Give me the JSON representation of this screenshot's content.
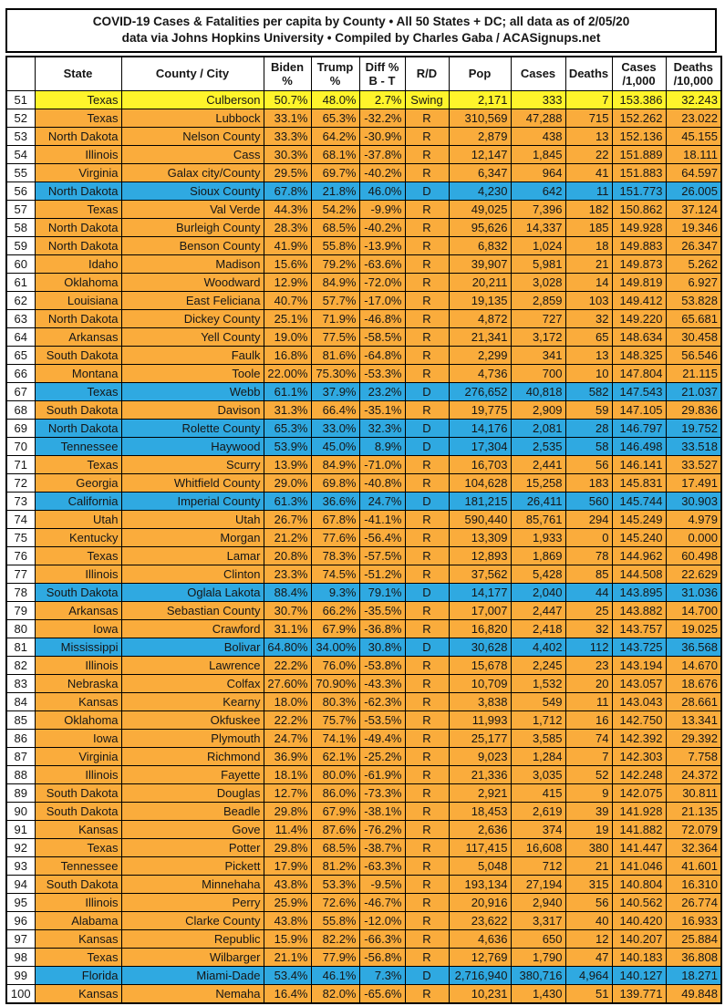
{
  "chart_data": {
    "type": "table",
    "title": "COVID-19 Cases & Fatalities per capita by County • All 50 States + DC; all data as of 2/05/20",
    "subtitle": "data via Johns Hopkins University • Compiled by Charles Gaba / ACASignups.net",
    "columns": [
      {
        "key": "rank",
        "lines": [
          ""
        ]
      },
      {
        "key": "state",
        "lines": [
          "State"
        ]
      },
      {
        "key": "county",
        "lines": [
          "County / City"
        ]
      },
      {
        "key": "biden",
        "lines": [
          "Biden",
          "%"
        ]
      },
      {
        "key": "trump",
        "lines": [
          "Trump",
          "%"
        ]
      },
      {
        "key": "diff",
        "lines": [
          "Diff %",
          "B - T"
        ]
      },
      {
        "key": "rd",
        "lines": [
          "R/D"
        ]
      },
      {
        "key": "pop",
        "lines": [
          "Pop"
        ]
      },
      {
        "key": "cases",
        "lines": [
          "Cases"
        ]
      },
      {
        "key": "deaths",
        "lines": [
          "Deaths"
        ]
      },
      {
        "key": "cases_per_1000",
        "lines": [
          "Cases",
          "/1,000"
        ]
      },
      {
        "key": "deaths_per_10000",
        "lines": [
          "Deaths",
          "/10,000"
        ]
      }
    ],
    "party_colors": {
      "Swing": "#FFF42B",
      "R": "#FAAC3C",
      "D": "#2FA9E1"
    },
    "rows": [
      [
        "51",
        "Texas",
        "Culberson",
        "50.7%",
        "48.0%",
        "2.7%",
        "Swing",
        "2,171",
        "333",
        "7",
        "153.386",
        "32.243"
      ],
      [
        "52",
        "Texas",
        "Lubbock",
        "33.1%",
        "65.3%",
        "-32.2%",
        "R",
        "310,569",
        "47,288",
        "715",
        "152.262",
        "23.022"
      ],
      [
        "53",
        "North Dakota",
        "Nelson County",
        "33.3%",
        "64.2%",
        "-30.9%",
        "R",
        "2,879",
        "438",
        "13",
        "152.136",
        "45.155"
      ],
      [
        "54",
        "Illinois",
        "Cass",
        "30.3%",
        "68.1%",
        "-37.8%",
        "R",
        "12,147",
        "1,845",
        "22",
        "151.889",
        "18.111"
      ],
      [
        "55",
        "Virginia",
        "Galax city/County",
        "29.5%",
        "69.7%",
        "-40.2%",
        "R",
        "6,347",
        "964",
        "41",
        "151.883",
        "64.597"
      ],
      [
        "56",
        "North Dakota",
        "Sioux County",
        "67.8%",
        "21.8%",
        "46.0%",
        "D",
        "4,230",
        "642",
        "11",
        "151.773",
        "26.005"
      ],
      [
        "57",
        "Texas",
        "Val Verde",
        "44.3%",
        "54.2%",
        "-9.9%",
        "R",
        "49,025",
        "7,396",
        "182",
        "150.862",
        "37.124"
      ],
      [
        "58",
        "North Dakota",
        "Burleigh County",
        "28.3%",
        "68.5%",
        "-40.2%",
        "R",
        "95,626",
        "14,337",
        "185",
        "149.928",
        "19.346"
      ],
      [
        "59",
        "North Dakota",
        "Benson County",
        "41.9%",
        "55.8%",
        "-13.9%",
        "R",
        "6,832",
        "1,024",
        "18",
        "149.883",
        "26.347"
      ],
      [
        "60",
        "Idaho",
        "Madison",
        "15.6%",
        "79.2%",
        "-63.6%",
        "R",
        "39,907",
        "5,981",
        "21",
        "149.873",
        "5.262"
      ],
      [
        "61",
        "Oklahoma",
        "Woodward",
        "12.9%",
        "84.9%",
        "-72.0%",
        "R",
        "20,211",
        "3,028",
        "14",
        "149.819",
        "6.927"
      ],
      [
        "62",
        "Louisiana",
        "East Feliciana",
        "40.7%",
        "57.7%",
        "-17.0%",
        "R",
        "19,135",
        "2,859",
        "103",
        "149.412",
        "53.828"
      ],
      [
        "63",
        "North Dakota",
        "Dickey County",
        "25.1%",
        "71.9%",
        "-46.8%",
        "R",
        "4,872",
        "727",
        "32",
        "149.220",
        "65.681"
      ],
      [
        "64",
        "Arkansas",
        "Yell County",
        "19.0%",
        "77.5%",
        "-58.5%",
        "R",
        "21,341",
        "3,172",
        "65",
        "148.634",
        "30.458"
      ],
      [
        "65",
        "South Dakota",
        "Faulk",
        "16.8%",
        "81.6%",
        "-64.8%",
        "R",
        "2,299",
        "341",
        "13",
        "148.325",
        "56.546"
      ],
      [
        "66",
        "Montana",
        "Toole",
        "22.00%",
        "75.30%",
        "-53.3%",
        "R",
        "4,736",
        "700",
        "10",
        "147.804",
        "21.115"
      ],
      [
        "67",
        "Texas",
        "Webb",
        "61.1%",
        "37.9%",
        "23.2%",
        "D",
        "276,652",
        "40,818",
        "582",
        "147.543",
        "21.037"
      ],
      [
        "68",
        "South Dakota",
        "Davison",
        "31.3%",
        "66.4%",
        "-35.1%",
        "R",
        "19,775",
        "2,909",
        "59",
        "147.105",
        "29.836"
      ],
      [
        "69",
        "North Dakota",
        "Rolette County",
        "65.3%",
        "33.0%",
        "32.3%",
        "D",
        "14,176",
        "2,081",
        "28",
        "146.797",
        "19.752"
      ],
      [
        "70",
        "Tennessee",
        "Haywood",
        "53.9%",
        "45.0%",
        "8.9%",
        "D",
        "17,304",
        "2,535",
        "58",
        "146.498",
        "33.518"
      ],
      [
        "71",
        "Texas",
        "Scurry",
        "13.9%",
        "84.9%",
        "-71.0%",
        "R",
        "16,703",
        "2,441",
        "56",
        "146.141",
        "33.527"
      ],
      [
        "72",
        "Georgia",
        "Whitfield County",
        "29.0%",
        "69.8%",
        "-40.8%",
        "R",
        "104,628",
        "15,258",
        "183",
        "145.831",
        "17.491"
      ],
      [
        "73",
        "California",
        "Imperial County",
        "61.3%",
        "36.6%",
        "24.7%",
        "D",
        "181,215",
        "26,411",
        "560",
        "145.744",
        "30.903"
      ],
      [
        "74",
        "Utah",
        "Utah",
        "26.7%",
        "67.8%",
        "-41.1%",
        "R",
        "590,440",
        "85,761",
        "294",
        "145.249",
        "4.979"
      ],
      [
        "75",
        "Kentucky",
        "Morgan",
        "21.2%",
        "77.6%",
        "-56.4%",
        "R",
        "13,309",
        "1,933",
        "0",
        "145.240",
        "0.000"
      ],
      [
        "76",
        "Texas",
        "Lamar",
        "20.8%",
        "78.3%",
        "-57.5%",
        "R",
        "12,893",
        "1,869",
        "78",
        "144.962",
        "60.498"
      ],
      [
        "77",
        "Illinois",
        "Clinton",
        "23.3%",
        "74.5%",
        "-51.2%",
        "R",
        "37,562",
        "5,428",
        "85",
        "144.508",
        "22.629"
      ],
      [
        "78",
        "South Dakota",
        "Oglala Lakota",
        "88.4%",
        "9.3%",
        "79.1%",
        "D",
        "14,177",
        "2,040",
        "44",
        "143.895",
        "31.036"
      ],
      [
        "79",
        "Arkansas",
        "Sebastian County",
        "30.7%",
        "66.2%",
        "-35.5%",
        "R",
        "17,007",
        "2,447",
        "25",
        "143.882",
        "14.700"
      ],
      [
        "80",
        "Iowa",
        "Crawford",
        "31.1%",
        "67.9%",
        "-36.8%",
        "R",
        "16,820",
        "2,418",
        "32",
        "143.757",
        "19.025"
      ],
      [
        "81",
        "Mississippi",
        "Bolivar",
        "64.80%",
        "34.00%",
        "30.8%",
        "D",
        "30,628",
        "4,402",
        "112",
        "143.725",
        "36.568"
      ],
      [
        "82",
        "Illinois",
        "Lawrence",
        "22.2%",
        "76.0%",
        "-53.8%",
        "R",
        "15,678",
        "2,245",
        "23",
        "143.194",
        "14.670"
      ],
      [
        "83",
        "Nebraska",
        "Colfax",
        "27.60%",
        "70.90%",
        "-43.3%",
        "R",
        "10,709",
        "1,532",
        "20",
        "143.057",
        "18.676"
      ],
      [
        "84",
        "Kansas",
        "Kearny",
        "18.0%",
        "80.3%",
        "-62.3%",
        "R",
        "3,838",
        "549",
        "11",
        "143.043",
        "28.661"
      ],
      [
        "85",
        "Oklahoma",
        "Okfuskee",
        "22.2%",
        "75.7%",
        "-53.5%",
        "R",
        "11,993",
        "1,712",
        "16",
        "142.750",
        "13.341"
      ],
      [
        "86",
        "Iowa",
        "Plymouth",
        "24.7%",
        "74.1%",
        "-49.4%",
        "R",
        "25,177",
        "3,585",
        "74",
        "142.392",
        "29.392"
      ],
      [
        "87",
        "Virginia",
        "Richmond",
        "36.9%",
        "62.1%",
        "-25.2%",
        "R",
        "9,023",
        "1,284",
        "7",
        "142.303",
        "7.758"
      ],
      [
        "88",
        "Illinois",
        "Fayette",
        "18.1%",
        "80.0%",
        "-61.9%",
        "R",
        "21,336",
        "3,035",
        "52",
        "142.248",
        "24.372"
      ],
      [
        "89",
        "South Dakota",
        "Douglas",
        "12.7%",
        "86.0%",
        "-73.3%",
        "R",
        "2,921",
        "415",
        "9",
        "142.075",
        "30.811"
      ],
      [
        "90",
        "South Dakota",
        "Beadle",
        "29.8%",
        "67.9%",
        "-38.1%",
        "R",
        "18,453",
        "2,619",
        "39",
        "141.928",
        "21.135"
      ],
      [
        "91",
        "Kansas",
        "Gove",
        "11.4%",
        "87.6%",
        "-76.2%",
        "R",
        "2,636",
        "374",
        "19",
        "141.882",
        "72.079"
      ],
      [
        "92",
        "Texas",
        "Potter",
        "29.8%",
        "68.5%",
        "-38.7%",
        "R",
        "117,415",
        "16,608",
        "380",
        "141.447",
        "32.364"
      ],
      [
        "93",
        "Tennessee",
        "Pickett",
        "17.9%",
        "81.2%",
        "-63.3%",
        "R",
        "5,048",
        "712",
        "21",
        "141.046",
        "41.601"
      ],
      [
        "94",
        "South Dakota",
        "Minnehaha",
        "43.8%",
        "53.3%",
        "-9.5%",
        "R",
        "193,134",
        "27,194",
        "315",
        "140.804",
        "16.310"
      ],
      [
        "95",
        "Illinois",
        "Perry",
        "25.9%",
        "72.6%",
        "-46.7%",
        "R",
        "20,916",
        "2,940",
        "56",
        "140.562",
        "26.774"
      ],
      [
        "96",
        "Alabama",
        "Clarke County",
        "43.8%",
        "55.8%",
        "-12.0%",
        "R",
        "23,622",
        "3,317",
        "40",
        "140.420",
        "16.933"
      ],
      [
        "97",
        "Kansas",
        "Republic",
        "15.9%",
        "82.2%",
        "-66.3%",
        "R",
        "4,636",
        "650",
        "12",
        "140.207",
        "25.884"
      ],
      [
        "98",
        "Texas",
        "Wilbarger",
        "21.1%",
        "77.9%",
        "-56.8%",
        "R",
        "12,769",
        "1,790",
        "47",
        "140.183",
        "36.808"
      ],
      [
        "99",
        "Florida",
        "Miami-Dade",
        "53.4%",
        "46.1%",
        "7.3%",
        "D",
        "2,716,940",
        "380,716",
        "4,964",
        "140.127",
        "18.271"
      ],
      [
        "100",
        "Kansas",
        "Nemaha",
        "16.4%",
        "82.0%",
        "-65.6%",
        "R",
        "10,231",
        "1,430",
        "51",
        "139.771",
        "49.848"
      ]
    ]
  }
}
